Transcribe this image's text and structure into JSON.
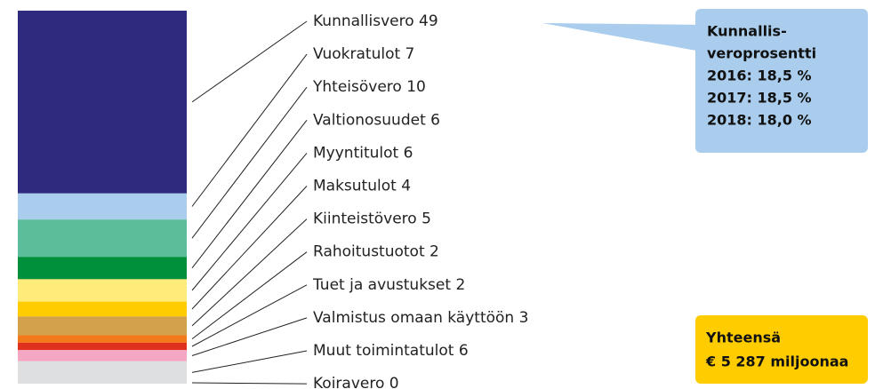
{
  "chart_data": {
    "type": "stacked-bar",
    "categories": [
      "Kunnallisvero",
      "Vuokratulot",
      "Yhteisövero",
      "Valtionosuudet",
      "Myyntitulot",
      "Maksutulot",
      "Kiinteistövero",
      "Rahoitustuotot",
      "Tuet ja avustukset",
      "Valmistus omaan käyttöön",
      "Muut toimintatulot",
      "Koiravero"
    ],
    "values": [
      49,
      7,
      10,
      6,
      6,
      4,
      5,
      2,
      2,
      3,
      6,
      0
    ],
    "colors": [
      "#2e2a7e",
      "#aacdee",
      "#5bbd99",
      "#00903c",
      "#ffeb7a",
      "#ffcc00",
      "#d3a04c",
      "#f27a18",
      "#e0301e",
      "#f4a7c2",
      "#dedfe0",
      "#c8c8c8"
    ],
    "annotations": [
      {
        "lines": [
          "Kunnallis-",
          "veroprosentti",
          "2016: 18,5 %",
          "2017: 18,5 %",
          "2018: 18,0 %"
        ],
        "color": "#aacdee"
      },
      {
        "lines": [
          "Yhteensä",
          "€ 5 287 miljoonaa"
        ],
        "color": "#ffcc00"
      }
    ]
  }
}
